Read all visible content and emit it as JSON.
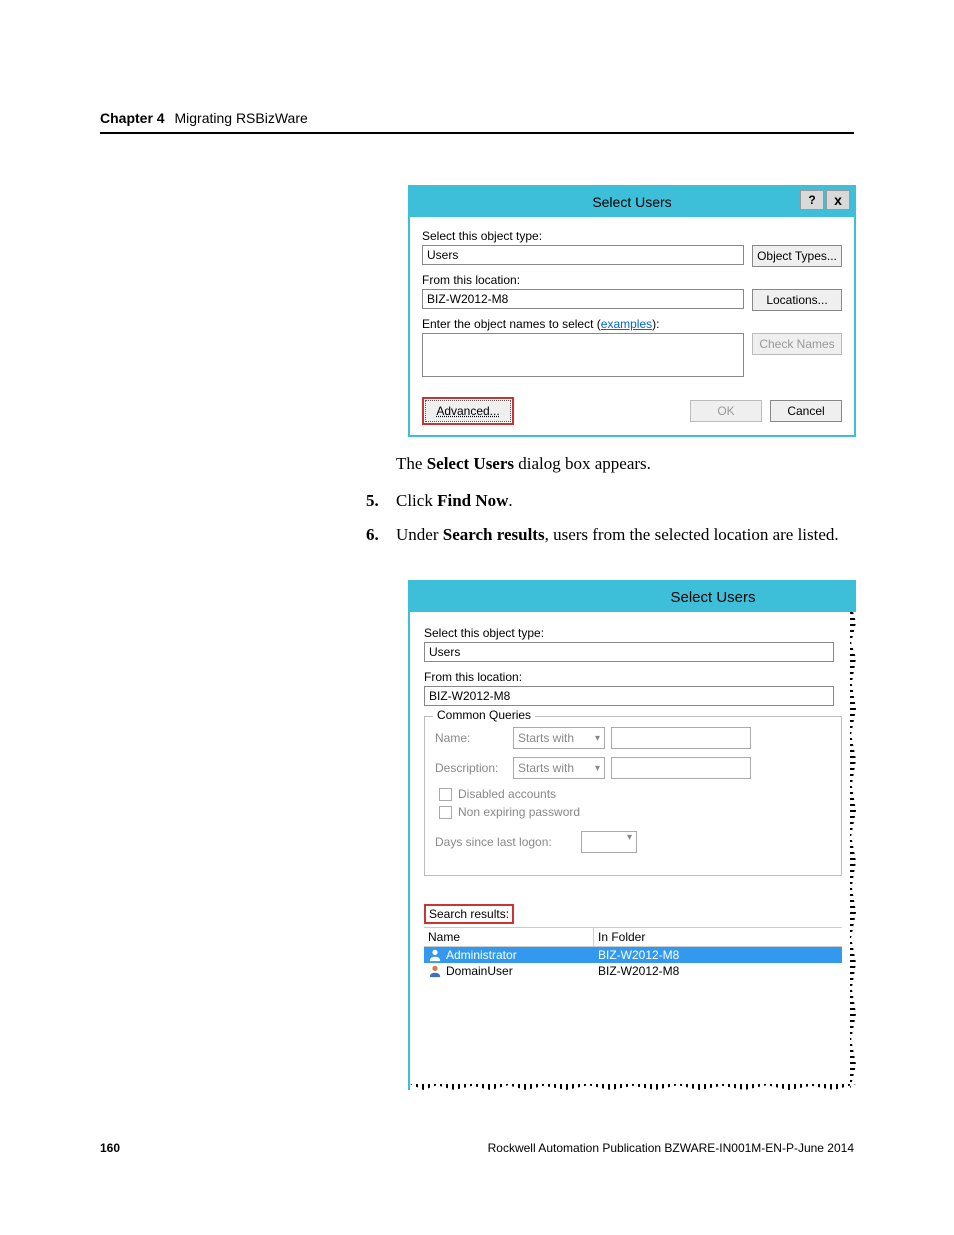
{
  "header": {
    "chapter_num": "Chapter 4",
    "chapter_title": "Migrating RSBizWare"
  },
  "dialog1": {
    "title": "Select Users",
    "help_label": "?",
    "close_label": "x",
    "label_object_type": "Select this object type:",
    "value_object_type": "Users",
    "btn_object_types": "Object Types...",
    "label_location": "From this location:",
    "value_location": "BIZ-W2012-M8",
    "btn_locations": "Locations...",
    "label_names_pre": "Enter the object names to select (",
    "label_names_link": "examples",
    "label_names_post": "):",
    "btn_check_names": "Check Names",
    "btn_advanced": "Advanced...",
    "btn_ok": "OK",
    "btn_cancel": "Cancel"
  },
  "body": {
    "para1_pre": "The ",
    "para1_bold": "Select Users",
    "para1_post": " dialog box appears.",
    "step5_num": "5.",
    "step5_pre": "Click ",
    "step5_bold": "Find Now",
    "step5_post": ".",
    "step6_num": "6.",
    "step6_pre": "Under ",
    "step6_bold": "Search results",
    "step6_post": ", users from the selected location are listed."
  },
  "dialog2": {
    "title": "Select Users",
    "label_object_type": "Select this object type:",
    "value_object_type": "Users",
    "label_location": "From this location:",
    "value_location": "BIZ-W2012-M8",
    "legend": "Common Queries",
    "q_name_label": "Name:",
    "q_starts_with": "Starts with",
    "q_desc_label": "Description:",
    "cb_disabled": "Disabled accounts",
    "cb_nonexp": "Non expiring password",
    "q_days_label": "Days since last logon:",
    "search_results_label": "Search results:",
    "col_name": "Name",
    "col_folder": "In Folder",
    "rows": [
      {
        "name": "Administrator",
        "folder": "BIZ-W2012-M8",
        "selected": true
      },
      {
        "name": "DomainUser",
        "folder": "BIZ-W2012-M8",
        "selected": false
      }
    ]
  },
  "footer": {
    "page_num": "160",
    "pub": "Rockwell Automation Publication BZWARE-IN001M-EN-P-June 2014"
  },
  "colors": {
    "titlebar_bg": "#3dbfd9",
    "highlight_border": "#cc3333",
    "link": "#0066cc",
    "disabled_text": "#999999"
  }
}
